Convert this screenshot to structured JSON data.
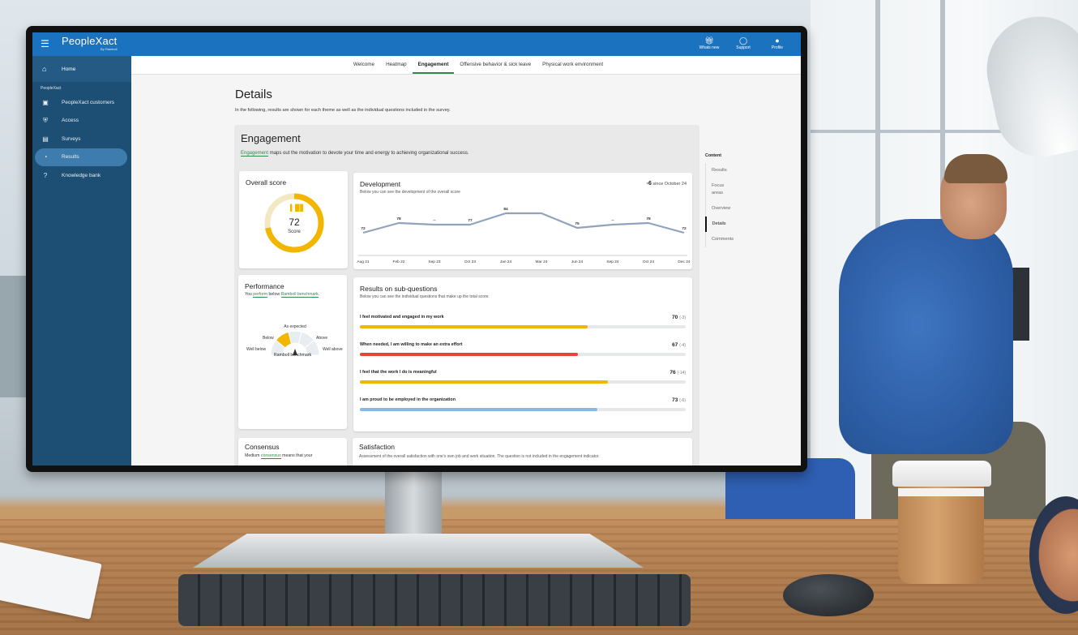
{
  "app": {
    "brand": "PeopleXact",
    "brand_sub": "By Ramboll"
  },
  "topbar": {
    "actions": [
      {
        "label": "Whats new",
        "icon": "gift-icon"
      },
      {
        "label": "Support",
        "icon": "headset-icon"
      },
      {
        "label": "Profile",
        "icon": "user-icon"
      }
    ]
  },
  "sidebar": {
    "home": "Home",
    "section": "PeopleXact",
    "items": [
      {
        "label": "PeopleXact customers",
        "icon": "briefcase-icon"
      },
      {
        "label": "Access",
        "icon": "shield-icon"
      },
      {
        "label": "Surveys",
        "icon": "clipboard-icon"
      },
      {
        "label": "Results",
        "icon": "pie-chart-icon",
        "active": true
      },
      {
        "label": "Knowledge bank",
        "icon": "help-icon"
      }
    ]
  },
  "tabs": [
    {
      "label": "Welcome"
    },
    {
      "label": "Heatmap"
    },
    {
      "label": "Engagement",
      "active": true
    },
    {
      "label": "Offensive behavior & sick leave"
    },
    {
      "label": "Physical work environment"
    }
  ],
  "page": {
    "title": "Details",
    "intro": "In the following, results are shown for each theme as well as the individual questions included in the survey."
  },
  "theme": {
    "title": "Engagement",
    "desc_link": "Engagement",
    "desc_rest": " maps out the motivation to devote your time and energy to achieving organizational success."
  },
  "overall": {
    "title": "Overall score",
    "value": "72",
    "label": "Score",
    "fraction": 0.72,
    "color": "#f2b600"
  },
  "development": {
    "title": "Development",
    "subtitle": "Below you can see the development of the overall score",
    "delta": "-6",
    "delta_suffix": "since October 24"
  },
  "chart_data": {
    "type": "line",
    "x": [
      "Aug 21",
      "Feb 22",
      "Sep 23",
      "Oct 23",
      "Jan 24",
      "Mar 24",
      "Jun 24",
      "Sep 24",
      "Oct 24",
      "Dec 24"
    ],
    "series": [
      {
        "values": [
          72,
          78,
          77,
          77,
          84,
          84,
          75,
          77,
          78,
          72
        ],
        "labels": [
          "72",
          "78",
          "--",
          "77",
          "84",
          "",
          "75",
          "--",
          "78",
          "72"
        ]
      }
    ],
    "color": "#8fa3bc"
  },
  "performance": {
    "title": "Performance",
    "text_prefix": "You ",
    "text_link1": "perform",
    "text_mid": " below ",
    "text_link2": "Ramboll benchmark",
    "text_suffix": ".",
    "labels": {
      "well_below": "Well below",
      "below": "Below",
      "as_expected": "As expected",
      "above": "Above",
      "well_above": "Well above"
    },
    "active_segment": "Below",
    "caption": "Ramboll benchmark"
  },
  "subquestions": {
    "title": "Results on sub-questions",
    "subtitle": "Below you can see the individual questions that make up the total score.",
    "items": [
      {
        "label": "I feel motivated and engaged in my work",
        "value": "70",
        "change": "(-3)",
        "fraction": 0.7,
        "color": "#f2b600"
      },
      {
        "label": "When needed, I am willing to make an extra effort",
        "value": "67",
        "change": "(-4)",
        "fraction": 0.67,
        "color": "#e6453a"
      },
      {
        "label": "I feel that the work I do is meaningful",
        "value": "76",
        "change": "(-14)",
        "fraction": 0.76,
        "color": "#f2b600"
      },
      {
        "label": "I am proud to be employed in the organization",
        "value": "73",
        "change": "(-6)",
        "fraction": 0.73,
        "color": "#84b9ea"
      }
    ]
  },
  "consensus": {
    "title": "Consensus",
    "text_prefix": "Medium ",
    "text_link": "consensus",
    "text_rest": " means that your"
  },
  "satisfaction": {
    "title": "Satisfaction",
    "text": "Assessment of the overall satisfaction with one's own job and work situation. The question is not included in the engagement indicator."
  },
  "toc": {
    "title": "Content",
    "items": [
      {
        "label": "Results"
      },
      {
        "label": "Focus areas"
      },
      {
        "label": "Overview"
      },
      {
        "label": "Details",
        "active": true
      },
      {
        "label": "Comments"
      }
    ]
  }
}
